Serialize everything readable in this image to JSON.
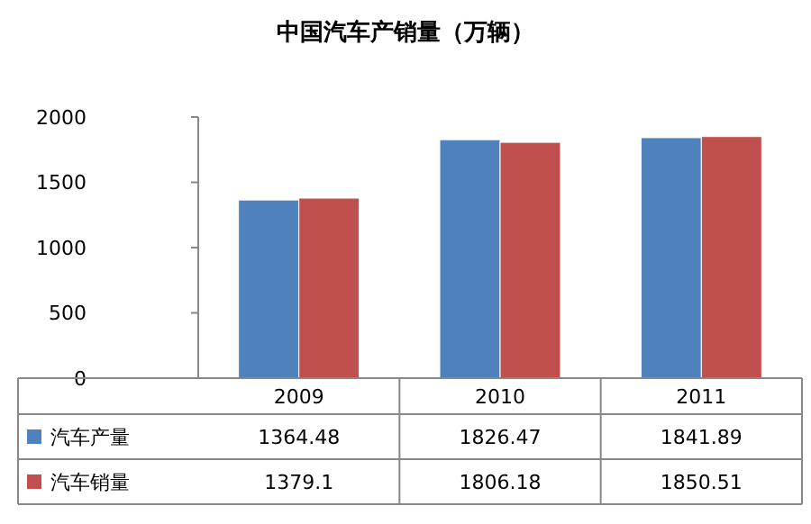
{
  "chart_data": {
    "type": "bar",
    "title": "中国汽车产销量（万辆）",
    "categories": [
      "2009",
      "2010",
      "2011"
    ],
    "series": [
      {
        "name": "汽车产量",
        "color": "#4f81bd",
        "values": [
          1364.48,
          1826.47,
          1841.89
        ]
      },
      {
        "name": "汽车销量",
        "color": "#c0504d",
        "values": [
          1379.1,
          1806.18,
          1850.51
        ]
      }
    ],
    "ylim": [
      0,
      2000
    ],
    "yticks": [
      0,
      500,
      1000,
      1500,
      2000
    ],
    "grid": false,
    "legend": "bottom left",
    "data_labels": true
  }
}
